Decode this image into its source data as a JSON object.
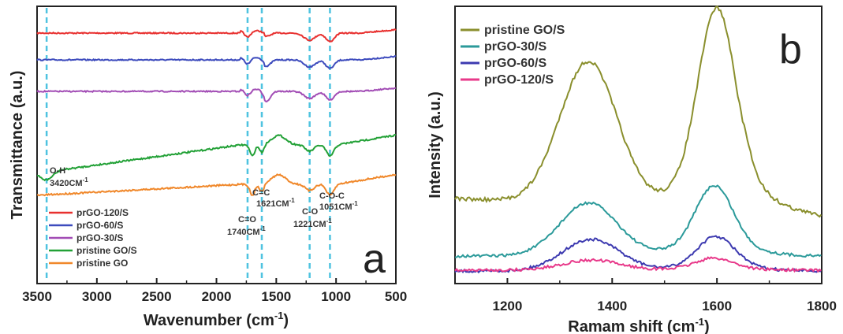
{
  "chart_data": [
    {
      "panel": "a",
      "type": "line",
      "xlabel": "Wavenumber (cm",
      "xlabel_sup": "-1",
      "xlabel_end": ")",
      "ylabel": "Transmittance (a.u.)",
      "xlim": [
        3500,
        500
      ],
      "x_reversed": true,
      "xticks": [
        "3500",
        "3000",
        "2500",
        "2000",
        "1500",
        "1000",
        "500"
      ],
      "legend_position": "bottom-left",
      "series": [
        {
          "name": "prGO-120/S",
          "color": "#e8302f"
        },
        {
          "name": "prGO-60/S",
          "color": "#3d4bbd"
        },
        {
          "name": "prGO-30/S",
          "color": "#a24db5"
        },
        {
          "name": "pristine GO/S",
          "color": "#23a137"
        },
        {
          "name": "pristine GO",
          "color": "#f0882b"
        }
      ],
      "annotations": [
        {
          "label": "O-H",
          "value": "3420CM",
          "sup": "-1",
          "x": 3420
        },
        {
          "label": "C=O",
          "value": "1740CM",
          "sup": "-1",
          "x": 1740
        },
        {
          "label": "C=C",
          "value": "1621CM",
          "sup": "-1",
          "x": 1621
        },
        {
          "label": "C-O",
          "value": "1221CM",
          "sup": "-1",
          "x": 1221
        },
        {
          "label": "C-O-C",
          "value": "1051CM",
          "sup": "-1",
          "x": 1051
        }
      ]
    },
    {
      "panel": "b",
      "type": "line",
      "xlabel": "Ramam shift (cm",
      "xlabel_sup": "-1",
      "xlabel_end": ")",
      "ylabel": "Intensity (a.u.)",
      "xlim": [
        1100,
        1800
      ],
      "xticks": [
        "1200",
        "1400",
        "1600",
        "1800"
      ],
      "legend_position": "top-left",
      "series": [
        {
          "name": "pristine GO/S",
          "color": "#8a8f2d",
          "D_peak": [
            1355,
            1.0
          ],
          "G_peak": [
            1600,
            1.18
          ]
        },
        {
          "name": "prGO-30/S",
          "color": "#2b9a9a",
          "D_peak": [
            1355,
            0.37
          ],
          "G_peak": [
            1595,
            0.41
          ]
        },
        {
          "name": "prGO-60/S",
          "color": "#3d3ab0",
          "D_peak": [
            1360,
            0.22
          ],
          "G_peak": [
            1598,
            0.2
          ]
        },
        {
          "name": "prGO-120/S",
          "color": "#e8398a",
          "D_peak": [
            1360,
            0.07
          ],
          "G_peak": [
            1595,
            0.07
          ]
        }
      ]
    }
  ]
}
